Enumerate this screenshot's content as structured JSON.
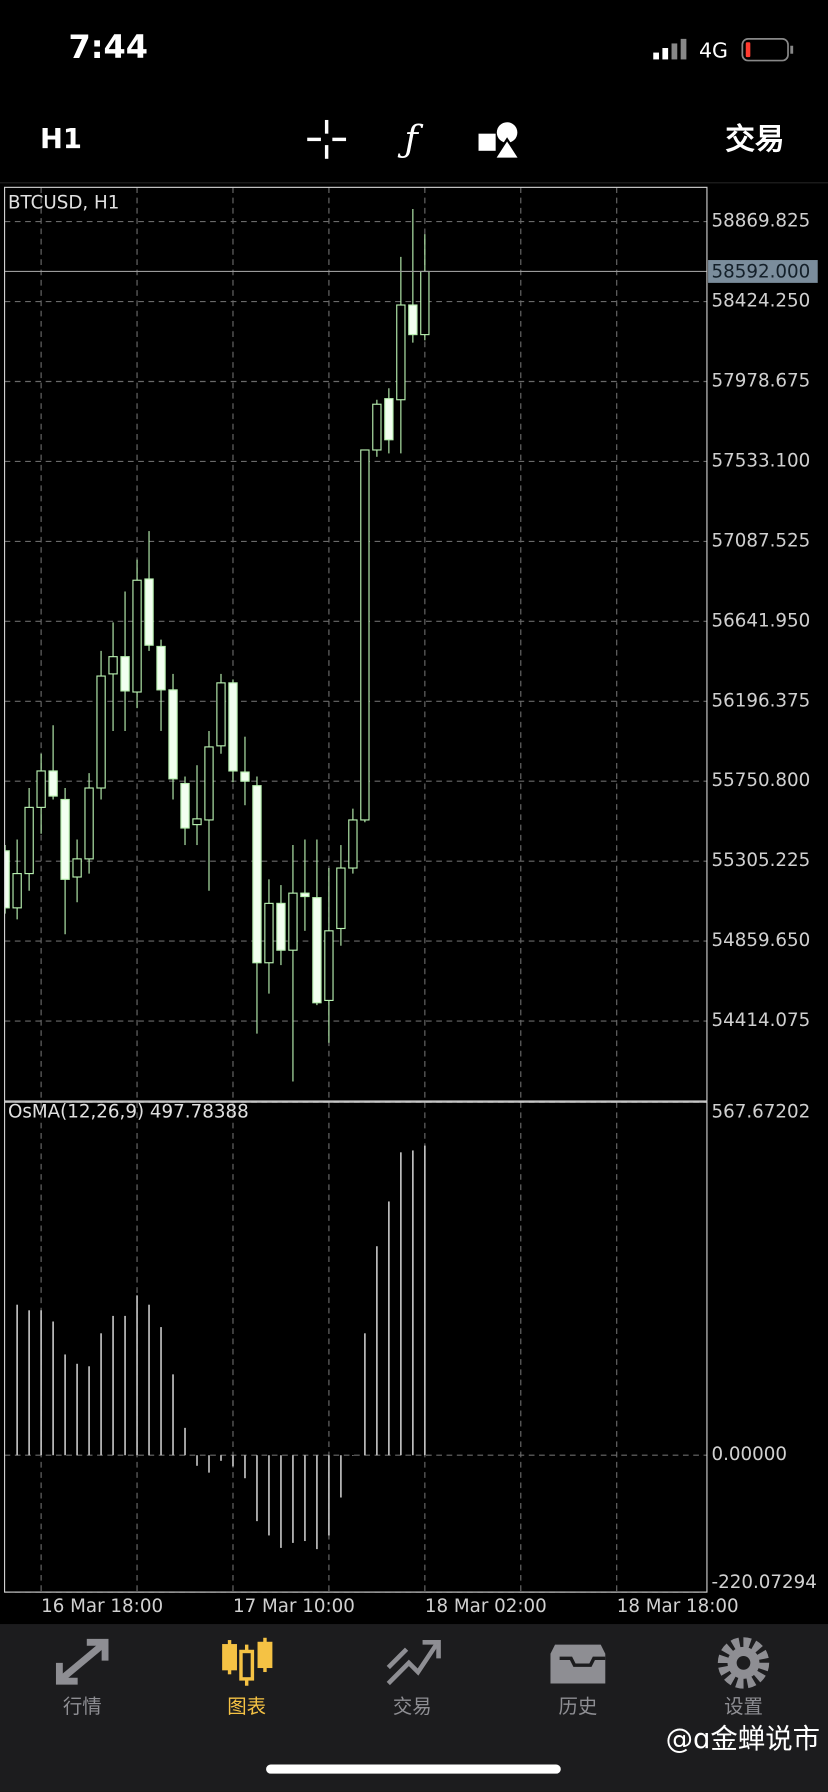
{
  "status_bar": {
    "time": "7:44",
    "network": "4G"
  },
  "toolbar": {
    "timeframe": "H1",
    "trade": "交易"
  },
  "chart_data": [
    {
      "type": "candlestick",
      "title": "BTCUSD, H1",
      "x": [
        "16 Mar 15:00",
        "16 Mar 16:00",
        "16 Mar 17:00",
        "16 Mar 18:00",
        "16 Mar 19:00",
        "16 Mar 20:00",
        "16 Mar 21:00",
        "16 Mar 22:00",
        "16 Mar 23:00",
        "17 Mar 00:00",
        "17 Mar 01:00",
        "17 Mar 02:00",
        "17 Mar 03:00",
        "17 Mar 04:00",
        "17 Mar 05:00",
        "17 Mar 06:00",
        "17 Mar 07:00",
        "17 Mar 08:00",
        "17 Mar 09:00",
        "17 Mar 10:00",
        "17 Mar 11:00",
        "17 Mar 12:00",
        "17 Mar 13:00",
        "17 Mar 14:00",
        "17 Mar 15:00",
        "17 Mar 16:00",
        "17 Mar 17:00",
        "17 Mar 18:00",
        "17 Mar 19:00",
        "17 Mar 20:00",
        "17 Mar 21:00",
        "17 Mar 22:00",
        "17 Mar 23:00",
        "18 Mar 00:00",
        "18 Mar 01:00",
        "18 Mar 02:00"
      ],
      "open": [
        55363,
        55045,
        55236,
        55605,
        55808,
        55649,
        55217,
        55318,
        55713,
        56349,
        56445,
        56248,
        56878,
        56502,
        56260,
        55738,
        55509,
        55535,
        55948,
        56299,
        55802,
        55726,
        54739,
        55070,
        54809,
        55127,
        55102,
        54529,
        54930,
        55267,
        55535,
        57597,
        57883,
        57877,
        58405,
        58240
      ],
      "high": [
        55395,
        55426,
        55713,
        55904,
        56063,
        55713,
        55426,
        55796,
        56477,
        56636,
        56808,
        56986,
        57145,
        56540,
        56349,
        55777,
        55840,
        56031,
        56349,
        56318,
        55999,
        55777,
        55204,
        55172,
        55395,
        55426,
        55426,
        55267,
        55395,
        55598,
        57597,
        57877,
        57941,
        58673,
        58940,
        58800
      ],
      "low": [
        55013,
        54981,
        55140,
        55458,
        55649,
        54898,
        55076,
        55236,
        55649,
        56031,
        56031,
        56158,
        56477,
        56031,
        55649,
        55395,
        55395,
        55140,
        55904,
        55745,
        55617,
        54344,
        54567,
        54726,
        54077,
        54917,
        54503,
        54293,
        54834,
        55236,
        55522,
        57559,
        57578,
        57578,
        58195,
        58208
      ],
      "close": [
        55045,
        55236,
        55605,
        55808,
        55668,
        55204,
        55318,
        55713,
        56337,
        56445,
        56254,
        56871,
        56509,
        56260,
        55764,
        55490,
        55541,
        55942,
        56299,
        55808,
        55751,
        54739,
        55070,
        54809,
        55127,
        55108,
        54516,
        54917,
        55267,
        55535,
        57597,
        57852,
        57654,
        58405,
        58240,
        58592
      ],
      "colors": {
        "up_fill": "#000000",
        "down_fill": "#f2fff0",
        "outline": "#b8f0b0"
      },
      "current_price": {
        "value": 58592,
        "label": "58592.000"
      },
      "ylim": [
        53968.5,
        59060.8
      ],
      "yticks": [
        58869.825,
        {
          "value": 58424.25,
          "label": "58424.250"
        },
        57978.675,
        {
          "value": 57533.1,
          "label": "57533.100"
        },
        57087.525,
        {
          "value": 56641.95,
          "label": "56641.950"
        },
        56196.375,
        {
          "value": 55750.8,
          "label": "55750.800"
        },
        55305.225,
        {
          "value": 54859.65,
          "label": "54859.650"
        },
        54414.075
      ],
      "grid": true
    },
    {
      "type": "bar",
      "title": "OsMA(12,26,9) 497.78388",
      "x": [
        "16 Mar 15:00",
        "16 Mar 16:00",
        "16 Mar 17:00",
        "16 Mar 18:00",
        "16 Mar 19:00",
        "16 Mar 20:00",
        "16 Mar 21:00",
        "16 Mar 22:00",
        "16 Mar 23:00",
        "17 Mar 00:00",
        "17 Mar 01:00",
        "17 Mar 02:00",
        "17 Mar 03:00",
        "17 Mar 04:00",
        "17 Mar 05:00",
        "17 Mar 06:00",
        "17 Mar 07:00",
        "17 Mar 08:00",
        "17 Mar 09:00",
        "17 Mar 10:00",
        "17 Mar 11:00",
        "17 Mar 12:00",
        "17 Mar 13:00",
        "17 Mar 14:00",
        "17 Mar 15:00",
        "17 Mar 16:00",
        "17 Mar 17:00",
        "17 Mar 18:00",
        "17 Mar 19:00",
        "17 Mar 20:00",
        "17 Mar 21:00",
        "17 Mar 22:00",
        "17 Mar 23:00",
        "18 Mar 00:00",
        "18 Mar 01:00",
        "18 Mar 02:00"
      ],
      "values": [
        null,
        242,
        233,
        233,
        215,
        162,
        147,
        143,
        196,
        224,
        224,
        257,
        242,
        206,
        130,
        44,
        -17,
        -28,
        -9,
        -18,
        -37,
        -106,
        -129,
        -149,
        -141,
        -138,
        -151,
        -129,
        -68,
        0,
        196,
        336,
        408,
        487,
        490,
        497.78388
      ],
      "color": "#c8c8c8",
      "ylim": [
        -220.07294,
        567.67202
      ],
      "yticks": [
        567.67202,
        {
          "value": 0,
          "label": "0.00000"
        },
        -220.07294
      ],
      "xticks": [
        "16 Mar 18:00",
        "17 Mar 10:00",
        "18 Mar 02:00",
        "18 Mar 18:00"
      ],
      "grid": true
    }
  ],
  "tabs": [
    "行情",
    "图表",
    "交易",
    "历史",
    "设置"
  ],
  "watermark": "@ɑ金蝉说市"
}
